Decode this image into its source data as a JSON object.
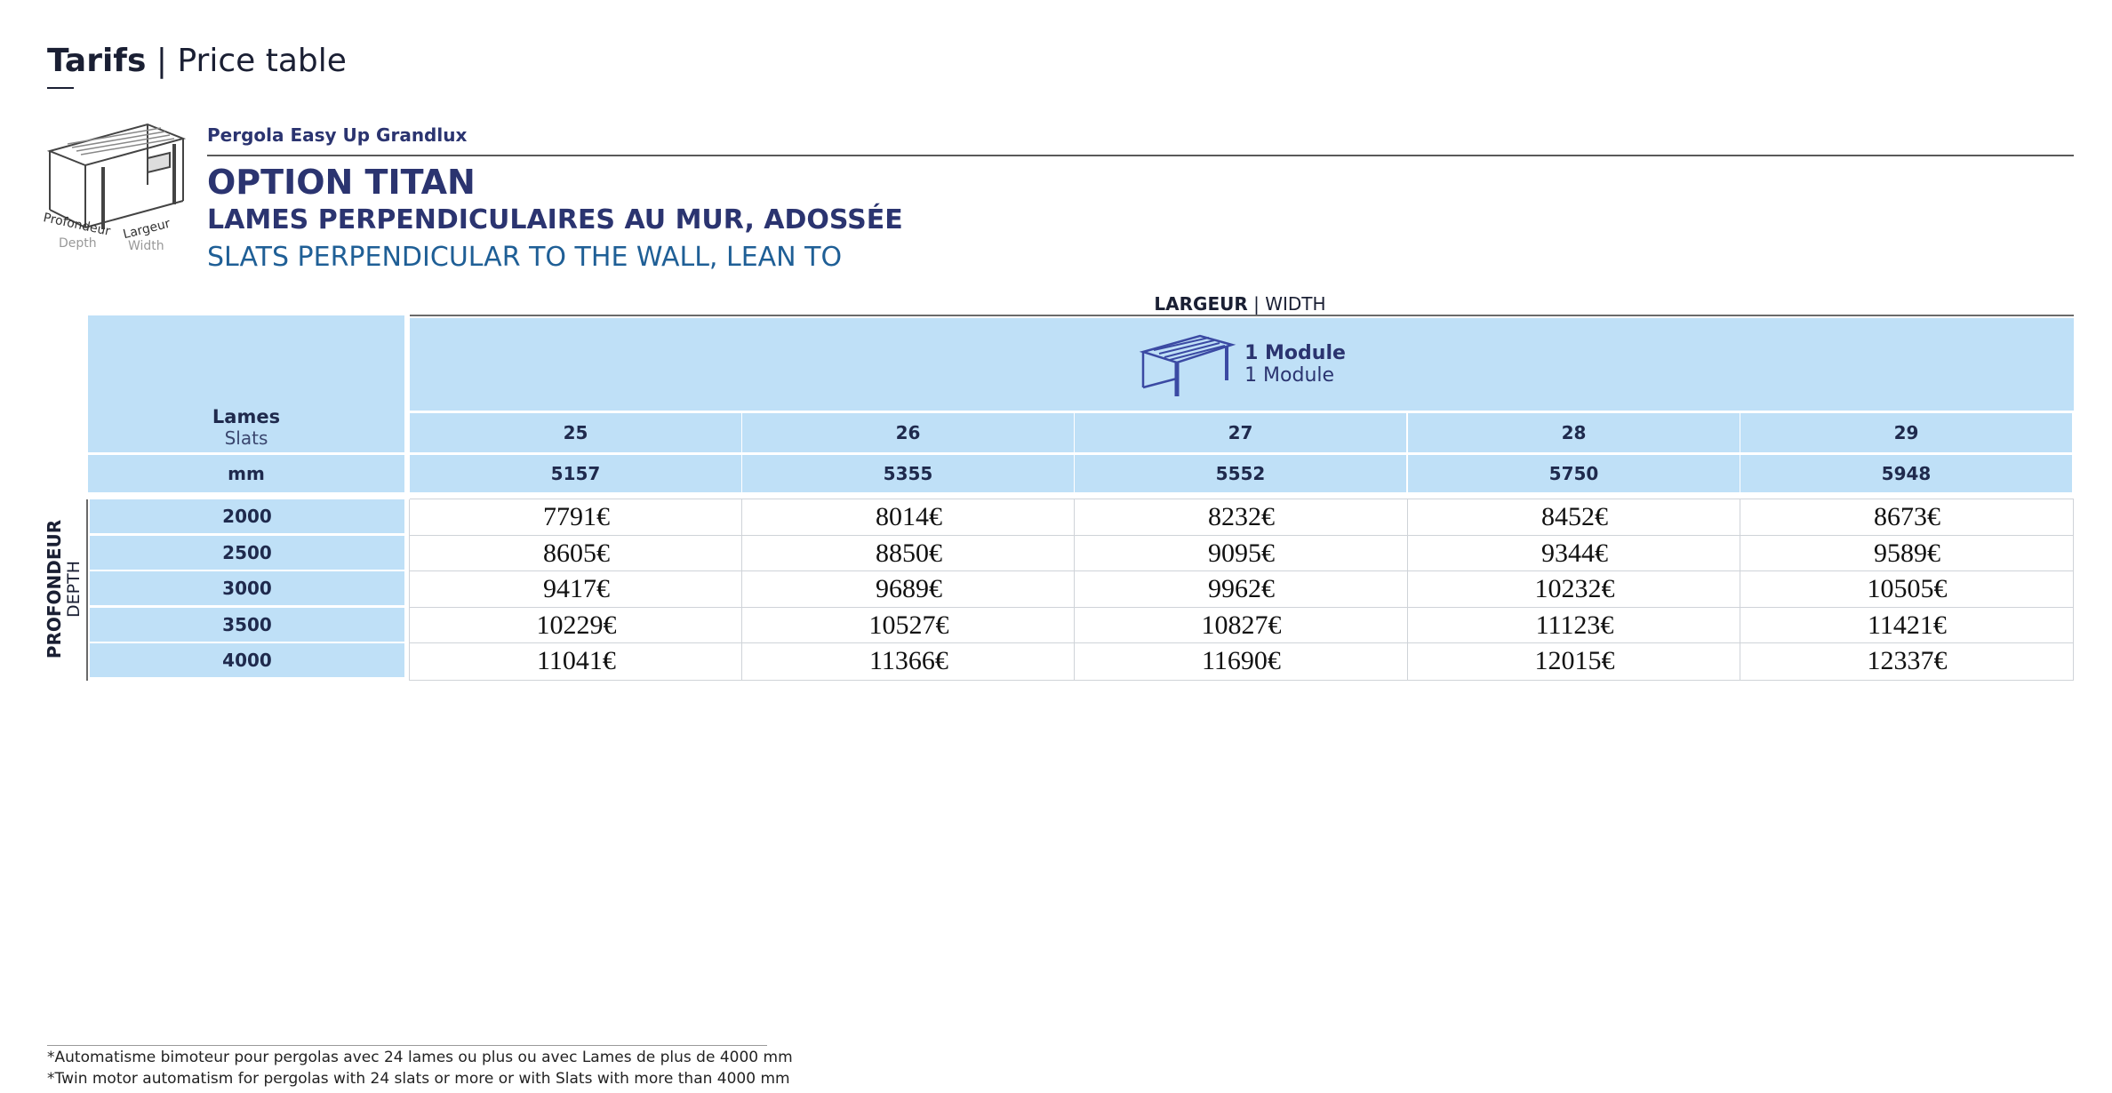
{
  "header": {
    "title_bold": "Tarifs",
    "separator": "|",
    "title_rest": "Price table"
  },
  "product": {
    "name": "Pergola Easy Up Grandlux",
    "option": "OPTION TITAN",
    "subtitle_fr": "LAMES PERPENDICULAIRES AU MUR, ADOSSÉE",
    "subtitle_en": "SLATS PERPENDICULAR TO THE WALL, LEAN TO"
  },
  "illustration": {
    "depth_fr": "Profondeur",
    "depth_en": "Depth",
    "width_fr": "Largeur",
    "width_en": "Width"
  },
  "table": {
    "width_label_bold": "LARGEUR",
    "width_label_rest": "WIDTH",
    "module_bold": "1 Module",
    "module_sub": "1 Module",
    "lames_label": "Lames",
    "slats_label": "Slats",
    "mm_label": "mm",
    "depth_label_fr": "PROFONDEUR",
    "depth_label_en": "DEPTH",
    "slats_counts": [
      "25",
      "26",
      "27",
      "28",
      "29"
    ],
    "widths_mm": [
      "5157",
      "5355",
      "5552",
      "5750",
      "5948"
    ],
    "rows": [
      {
        "depth": "2000",
        "prices": [
          "7791€",
          "8014€",
          "8232€",
          "8452€",
          "8673€"
        ]
      },
      {
        "depth": "2500",
        "prices": [
          "8605€",
          "8850€",
          "9095€",
          "9344€",
          "9589€"
        ]
      },
      {
        "depth": "3000",
        "prices": [
          "9417€",
          "9689€",
          "9962€",
          "10232€",
          "10505€"
        ]
      },
      {
        "depth": "3500",
        "prices": [
          "10229€",
          "10527€",
          "10827€",
          "11123€",
          "11421€"
        ]
      },
      {
        "depth": "4000",
        "prices": [
          "11041€",
          "11366€",
          "11690€",
          "12015€",
          "12337€"
        ]
      }
    ]
  },
  "footnotes": {
    "fr": "*Automatisme bimoteur pour pergolas avec 24 lames ou plus ou avec Lames de plus de 4000 mm",
    "en": "*Twin motor automatism for pergolas with 24 slats or more or with Slats with more than 4000 mm"
  },
  "colors": {
    "navy": "#2b3470",
    "header_blue": "#bfe0f7",
    "subtitle_blue": "#1f5f96"
  }
}
